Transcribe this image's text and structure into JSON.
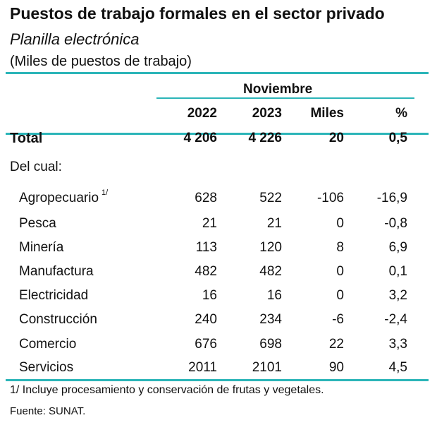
{
  "title": "Puestos de trabajo formales en el sector privado",
  "subtitle": "Planilla electrónica",
  "units": "(Miles de puestos de trabajo)",
  "period": "Noviembre",
  "columns": [
    "2022",
    "2023",
    "Miles",
    "%"
  ],
  "total": {
    "label": "Total",
    "values": [
      "4 206",
      "4 226",
      "20",
      "0,5"
    ]
  },
  "section_label": "Del cual:",
  "rows": [
    {
      "label": "Agropecuario",
      "note": "1/",
      "values": [
        "628",
        "522",
        "-106",
        "-16,9"
      ]
    },
    {
      "label": "Pesca",
      "values": [
        "21",
        "21",
        "0",
        "-0,8"
      ]
    },
    {
      "label": "Minería",
      "values": [
        "113",
        "120",
        "8",
        "6,9"
      ]
    },
    {
      "label": "Manufactura",
      "values": [
        "482",
        "482",
        "0",
        "0,1"
      ]
    },
    {
      "label": "Electricidad",
      "values": [
        "16",
        "16",
        "0",
        "3,2"
      ]
    },
    {
      "label": "Construcción",
      "values": [
        "240",
        "234",
        "-6",
        "-2,4"
      ]
    },
    {
      "label": "Comercio",
      "values": [
        "676",
        "698",
        "22",
        "3,3"
      ]
    },
    {
      "label": "Servicios",
      "values": [
        "2011",
        "2101",
        "90",
        "4,5"
      ]
    }
  ],
  "footnote": "1/ Incluye procesamiento y conservación de frutas y vegetales.",
  "source": "Fuente: SUNAT.",
  "colors": {
    "rule": "#2bb5b8"
  }
}
